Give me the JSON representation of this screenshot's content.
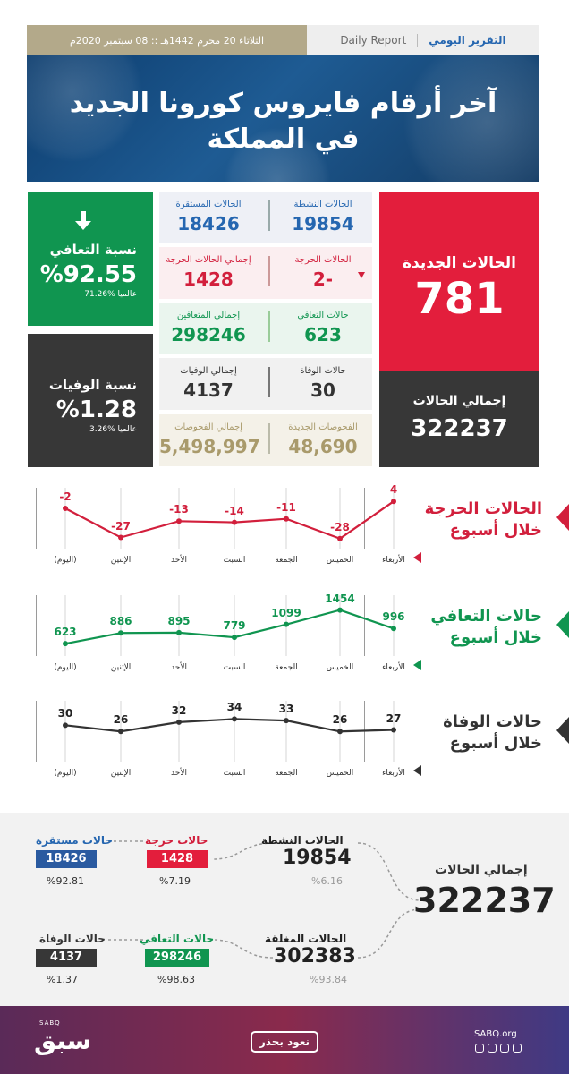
{
  "header": {
    "title_ar": "التقرير اليومي",
    "title_en": "Daily Report",
    "date": "الثلاثاء 20 محرم 1442هـ :: 08 سبتمبر 2020م"
  },
  "hero": {
    "title_line1": "آخر أرقام فايروس كورونا الجديد",
    "title_line2": "في المملكة"
  },
  "stats": {
    "new_cases": {
      "label": "الحالات الجديدة",
      "value": "781"
    },
    "total_cases": {
      "label": "إجمالي الحالات",
      "value": "322237"
    },
    "active": {
      "label": "الحالات النشطة",
      "value": "19854"
    },
    "stable": {
      "label": "الحالات المستقرة",
      "value": "18426"
    },
    "critical": {
      "label": "الحالات الحرجة",
      "value": "2-"
    },
    "critical_total": {
      "label": "إجمالي الحالات الحرجة",
      "value": "1428"
    },
    "recovered": {
      "label": "حالات التعافي",
      "value": "623"
    },
    "recovered_total": {
      "label": "إجمالي المتعافين",
      "value": "298246"
    },
    "deaths": {
      "label": "حالات الوفاة",
      "value": "30"
    },
    "deaths_total": {
      "label": "إجمالي الوفيات",
      "value": "4137"
    },
    "tests_new": {
      "label": "الفحوصات الجديدة",
      "value": "48,690"
    },
    "tests_total": {
      "label": "إجمالي الفحوصات",
      "value": "5,498,997"
    },
    "recovery_rate": {
      "label": "نسبة التعافي",
      "value": "%92.55",
      "global": "عالميا %71.26"
    },
    "death_rate": {
      "label": "نسبة الوفيات",
      "value": "%1.28",
      "global": "عالميا %3.26"
    }
  },
  "days": [
    "الأربعاء",
    "الخميس",
    "الجمعة",
    "السبت",
    "الأحد",
    "الإثنين",
    "(اليوم)"
  ],
  "chart_data": [
    {
      "type": "line",
      "title": "الحالات الحرجة خلال أسبوع",
      "title_line1": "الحالات الحرجة",
      "title_line2": "خلال أسبوع",
      "categories": [
        "الأربعاء",
        "الخميس",
        "الجمعة",
        "السبت",
        "الأحد",
        "الإثنين",
        "(اليوم)"
      ],
      "values": [
        4,
        -28,
        -11,
        -14,
        -13,
        -27,
        -2
      ],
      "value_labels": [
        "4",
        "-28",
        "-11",
        "-14",
        "-13",
        "-27",
        "-2"
      ],
      "ylim": [
        -32,
        8
      ],
      "color": "#d21f3c"
    },
    {
      "type": "line",
      "title": "حالات التعافي خلال أسبوع",
      "title_line1": "حالات التعافي",
      "title_line2": "خلال أسبوع",
      "categories": [
        "الأربعاء",
        "الخميس",
        "الجمعة",
        "السبت",
        "الأحد",
        "الإثنين",
        "(اليوم)"
      ],
      "values": [
        996,
        1454,
        1099,
        779,
        895,
        886,
        623
      ],
      "value_labels": [
        "996",
        "1454",
        "1099",
        "779",
        "895",
        "886",
        "623"
      ],
      "ylim": [
        450,
        1600
      ],
      "color": "#109550"
    },
    {
      "type": "line",
      "title": "حالات الوفاة خلال أسبوع",
      "title_line1": "حالات الوفاة",
      "title_line2": "خلال أسبوع",
      "categories": [
        "الأربعاء",
        "الخميس",
        "الجمعة",
        "السبت",
        "الأحد",
        "الإثنين",
        "(اليوم)"
      ],
      "values": [
        27,
        26,
        33,
        34,
        32,
        26,
        30
      ],
      "value_labels": [
        "27",
        "26",
        "33",
        "34",
        "32",
        "26",
        "30"
      ],
      "ylim": [
        10,
        40
      ],
      "color": "#333333"
    }
  ],
  "summary": {
    "total": {
      "label": "إجمالي الحالات",
      "value": "322237"
    },
    "active": {
      "label": "الحالات النشطة",
      "value": "19854",
      "pct": "%6.16"
    },
    "closed": {
      "label": "الحالات المغلقة",
      "value": "302383",
      "pct": "%93.84"
    },
    "critical": {
      "label": "حالات حرجة",
      "value": "1428",
      "pct": "%7.19"
    },
    "stable": {
      "label": "حالات مستقرة",
      "value": "18426",
      "pct": "%92.81"
    },
    "recovered": {
      "label": "حالات التعافي",
      "value": "298246",
      "pct": "%98.63"
    },
    "deaths": {
      "label": "حالات الوفاة",
      "value": "4137",
      "pct": "%1.37"
    }
  },
  "footer": {
    "brand_small": "SABQ",
    "brand": "سبق",
    "slogan": "نعود بحذر",
    "site": "SABQ.org"
  },
  "colors": {
    "red": "#e31e3c",
    "green": "#109550",
    "dark": "#373737",
    "blue": "#2566b0",
    "gold": "#b3a98a"
  }
}
